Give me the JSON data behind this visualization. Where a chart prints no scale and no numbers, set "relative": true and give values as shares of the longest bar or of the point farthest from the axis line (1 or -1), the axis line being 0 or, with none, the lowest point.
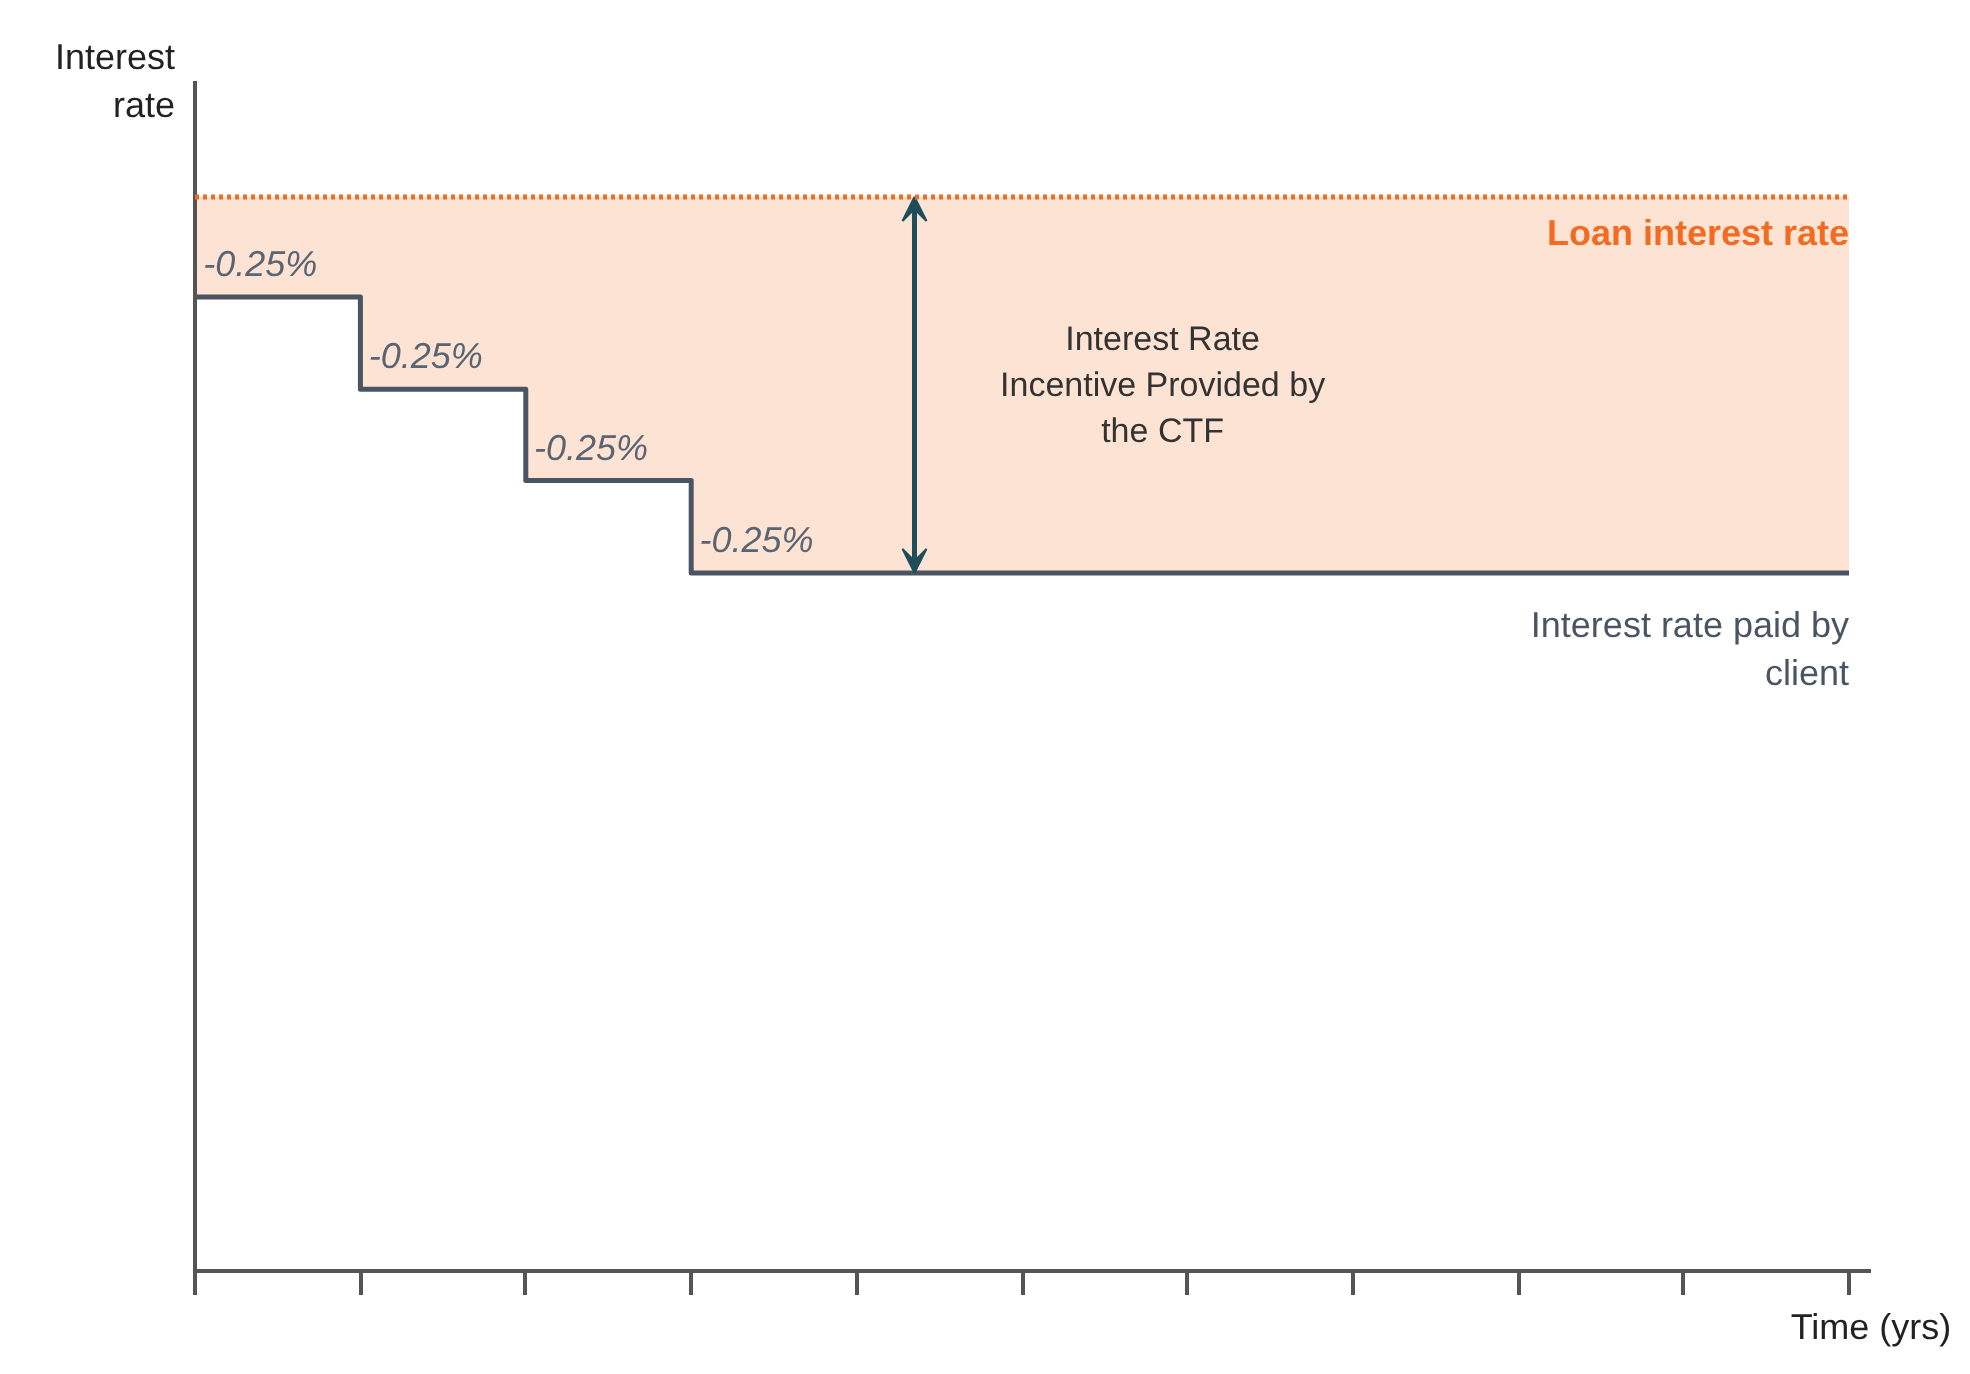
{
  "chart_data": {
    "type": "line",
    "relative": true,
    "xlabel": "Time (yrs)",
    "ylabel": "Interest rate",
    "categories": [
      null,
      null,
      null,
      null,
      null,
      null,
      null,
      null,
      null,
      null,
      null
    ],
    "series": [
      {
        "name": "Loan interest rate",
        "color": "#f26b21",
        "line_style": "dotted",
        "values": [
          1,
          1,
          1,
          1,
          1,
          1,
          1,
          1,
          1,
          1,
          1
        ],
        "lower": [
          0.907,
          0.821,
          0.736,
          0.65,
          0.65,
          0.65,
          0.65,
          0.65,
          0.65,
          0.65,
          0.65
        ],
        "upper": [
          1,
          1,
          1,
          1,
          1,
          1,
          1,
          1,
          1,
          1,
          1
        ]
      },
      {
        "name": "Interest rate paid by client",
        "type": "step",
        "color": "#4a5563",
        "line_style": "solid",
        "values": [
          0.907,
          0.821,
          0.736,
          0.65,
          0.65,
          0.65,
          0.65,
          0.65,
          0.65,
          0.65,
          0.65
        ]
      }
    ],
    "annotations": [
      {
        "text": "-0.25%",
        "y": 0.907
      },
      {
        "text": "-0.25%",
        "y": 0.821
      },
      {
        "text": "-0.25%",
        "y": 0.736
      },
      {
        "text": "-0.25%",
        "y": 0.65
      },
      "Interest Rate Incentive Provided by the CTF"
    ],
    "grid": false,
    "marker": "none"
  }
}
